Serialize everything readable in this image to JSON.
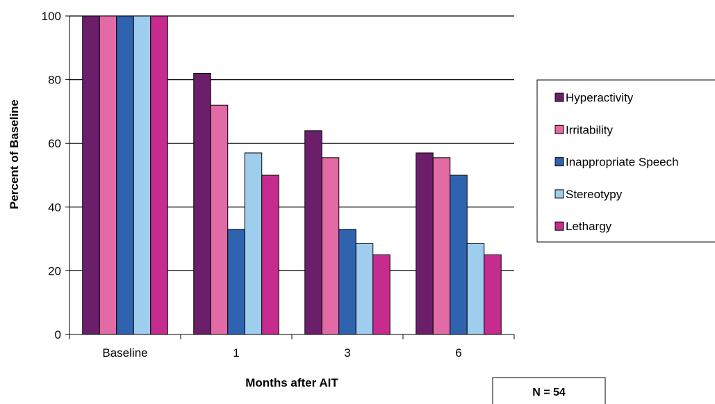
{
  "chart_data": {
    "type": "bar",
    "xlabel": "Months after AIT",
    "ylabel": "Percent of Baseline",
    "categories": [
      "Baseline",
      "1",
      "3",
      "6"
    ],
    "ylim": [
      0,
      100
    ],
    "yticks": [
      0,
      20,
      40,
      60,
      80,
      100
    ],
    "grid": true,
    "legend_position": "right",
    "series": [
      {
        "name": "Hyperactivity",
        "color": "#6b1f6b",
        "values": [
          100,
          82,
          64,
          57
        ]
      },
      {
        "name": "Irritability",
        "color": "#e26ba6",
        "values": [
          100,
          72,
          55.5,
          55.5
        ]
      },
      {
        "name": "Inappropriate Speech",
        "color": "#2f63b0",
        "values": [
          100,
          33,
          33,
          50
        ]
      },
      {
        "name": "Stereotypy",
        "color": "#9fcdee",
        "values": [
          100,
          57,
          28.5,
          28.5
        ]
      },
      {
        "name": "Lethargy",
        "color": "#c62b8e",
        "values": [
          100,
          50,
          25,
          25
        ]
      }
    ],
    "annotation": "N = 54"
  }
}
